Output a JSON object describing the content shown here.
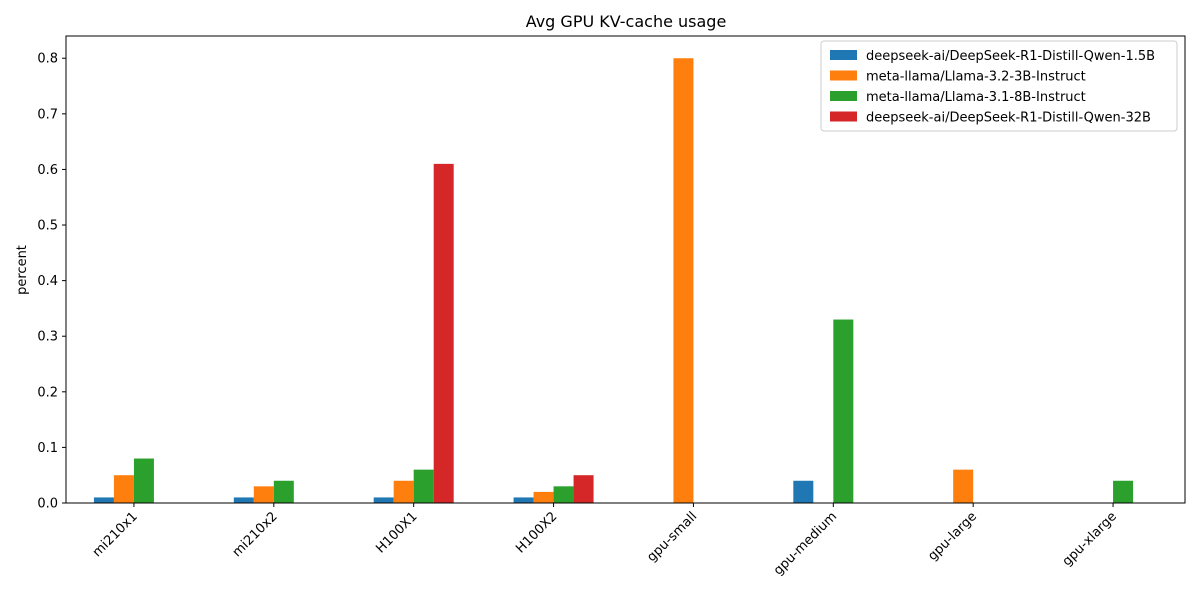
{
  "chart_data": {
    "type": "bar",
    "title": "Avg GPU KV-cache usage",
    "xlabel": "",
    "ylabel": "percent",
    "ylim": [
      0,
      0.84
    ],
    "yticks": [
      0.0,
      0.1,
      0.2,
      0.3,
      0.4,
      0.5,
      0.6,
      0.7,
      0.8
    ],
    "ytick_labels": [
      "0.0",
      "0.1",
      "0.2",
      "0.3",
      "0.4",
      "0.5",
      "0.6",
      "0.7",
      "0.8"
    ],
    "grid": false,
    "legend_position": "top-right",
    "categories": [
      "mi210x1",
      "mi210x2",
      "H100X1",
      "H100X2",
      "gpu-small",
      "gpu-medium",
      "gpu-large",
      "gpu-xlarge"
    ],
    "series": [
      {
        "name": "deepseek-ai/DeepSeek-R1-Distill-Qwen-1.5B",
        "color": "#1f77b4",
        "values": [
          0.01,
          0.01,
          0.01,
          0.01,
          0,
          0.04,
          0,
          0
        ]
      },
      {
        "name": "meta-llama/Llama-3.2-3B-Instruct",
        "color": "#ff7f0e",
        "values": [
          0.05,
          0.03,
          0.04,
          0.02,
          0.8,
          0,
          0.06,
          0
        ]
      },
      {
        "name": "meta-llama/Llama-3.1-8B-Instruct",
        "color": "#2ca02c",
        "values": [
          0.08,
          0.04,
          0.06,
          0.03,
          0,
          0.33,
          0,
          0.04
        ]
      },
      {
        "name": "deepseek-ai/DeepSeek-R1-Distill-Qwen-32B",
        "color": "#d62728",
        "values": [
          0,
          0,
          0.61,
          0.05,
          0,
          0,
          0,
          0
        ]
      }
    ]
  }
}
